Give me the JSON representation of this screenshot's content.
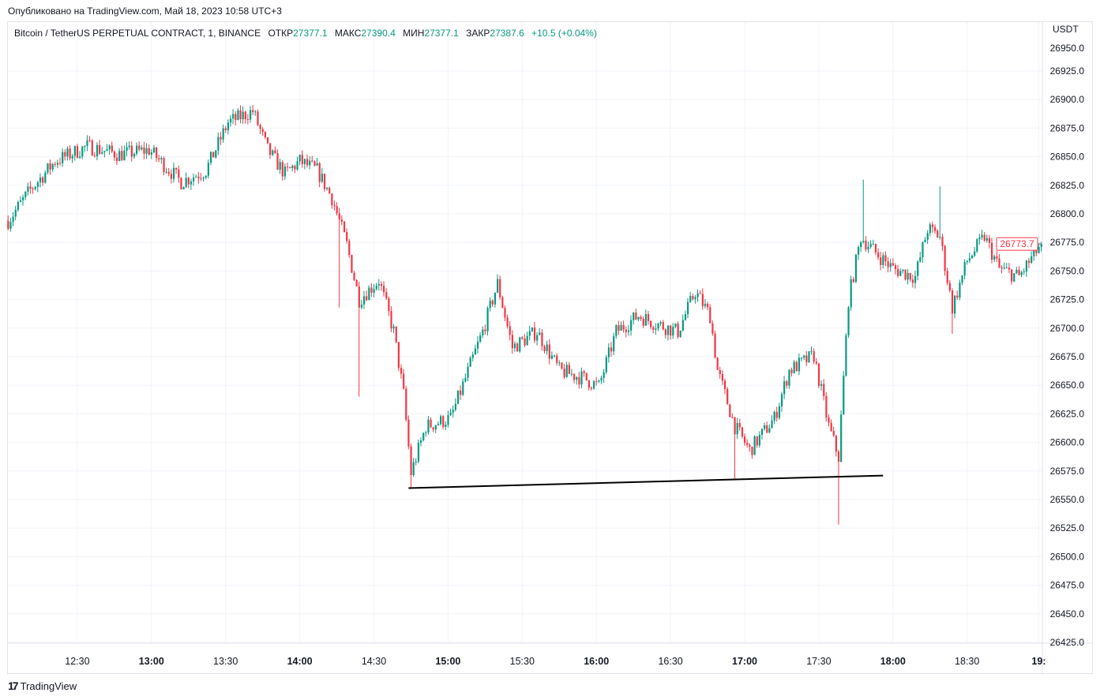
{
  "published": "Опубликовано на TradingView.com, Май 18, 2023 10:58 UTC+3",
  "legend": {
    "symbol": "Bitcoin / TetherUS PERPETUAL CONTRACT, 1, BINANCE",
    "open_label": "ОТКР",
    "open": "27377.1",
    "high_label": "МАКС",
    "high": "27390.4",
    "low_label": "МИН",
    "low": "27377.1",
    "close_label": "ЗАКР",
    "close": "27387.6",
    "change": "+10.5 (+0.04%)"
  },
  "currency": "USDT",
  "last_price": "26773.7",
  "brand": "TradingView",
  "colors": {
    "up": "#089981",
    "down": "#f23645",
    "grid": "#f0f3fa",
    "line": "#000000"
  },
  "chart_data": {
    "type": "candlestick",
    "interval_minutes": 1,
    "x_unit": "minutes after 12:00",
    "y_ticks": [
      "26950.0",
      "26925.0",
      "26900.0",
      "26875.0",
      "26850.0",
      "26825.0",
      "26800.0",
      "26775.0",
      "26750.0",
      "26725.0",
      "26700.0",
      "26675.0",
      "26650.0",
      "26625.0",
      "26600.0",
      "26575.0",
      "26550.0",
      "26525.0",
      "26500.0",
      "26475.0",
      "26450.0",
      "26425.0"
    ],
    "ylim": [
      26419,
      26966
    ],
    "xlim": [
      0,
      422
    ],
    "x_ticks": [
      {
        "m": 30,
        "label": "12:30",
        "major": false
      },
      {
        "m": 60,
        "label": "13:00",
        "major": true
      },
      {
        "m": 90,
        "label": "13:30",
        "major": false
      },
      {
        "m": 120,
        "label": "14:00",
        "major": true
      },
      {
        "m": 150,
        "label": "14:30",
        "major": false
      },
      {
        "m": 180,
        "label": "15:00",
        "major": true
      },
      {
        "m": 210,
        "label": "15:30",
        "major": false
      },
      {
        "m": 240,
        "label": "16:00",
        "major": true
      },
      {
        "m": 270,
        "label": "16:30",
        "major": false
      },
      {
        "m": 300,
        "label": "17:00",
        "major": true
      },
      {
        "m": 330,
        "label": "17:30",
        "major": false
      },
      {
        "m": 360,
        "label": "18:00",
        "major": true
      },
      {
        "m": 390,
        "label": "18:30",
        "major": false
      },
      {
        "m": 419,
        "label": "19:",
        "major": true
      }
    ],
    "path": [
      [
        2,
        26794
      ],
      [
        11,
        26821
      ],
      [
        21,
        26846
      ],
      [
        34,
        26859
      ],
      [
        47,
        26852
      ],
      [
        59,
        26856
      ],
      [
        72,
        26828
      ],
      [
        82,
        26838
      ],
      [
        91,
        26880
      ],
      [
        101,
        26890
      ],
      [
        107,
        26856
      ],
      [
        114,
        26835
      ],
      [
        120,
        26846
      ],
      [
        127,
        26838
      ],
      [
        133,
        26814
      ],
      [
        139,
        26773
      ],
      [
        144,
        26725
      ],
      [
        152,
        26742
      ],
      [
        158,
        26697
      ],
      [
        162,
        26642
      ],
      [
        165,
        26573
      ],
      [
        171,
        26614
      ],
      [
        181,
        26621
      ],
      [
        187,
        26656
      ],
      [
        194,
        26697
      ],
      [
        200,
        26739
      ],
      [
        206,
        26683
      ],
      [
        216,
        26697
      ],
      [
        225,
        26663
      ],
      [
        235,
        26656
      ],
      [
        241,
        26649
      ],
      [
        248,
        26697
      ],
      [
        257,
        26711
      ],
      [
        264,
        26704
      ],
      [
        273,
        26697
      ],
      [
        280,
        26732
      ],
      [
        286,
        26711
      ],
      [
        289,
        26663
      ],
      [
        296,
        26614
      ],
      [
        302,
        26593
      ],
      [
        312,
        26621
      ],
      [
        318,
        26663
      ],
      [
        328,
        26676
      ],
      [
        334,
        26614
      ],
      [
        338,
        26587
      ],
      [
        342,
        26725
      ],
      [
        347,
        26780
      ],
      [
        353,
        26766
      ],
      [
        360,
        26752
      ],
      [
        369,
        26745
      ],
      [
        374,
        26787
      ],
      [
        379,
        26780
      ],
      [
        384,
        26718
      ],
      [
        390,
        26759
      ],
      [
        397,
        26780
      ],
      [
        403,
        26752
      ],
      [
        411,
        26745
      ],
      [
        420,
        26773.7
      ]
    ],
    "wicks": [
      [
        136,
        26718
      ],
      [
        144,
        26640
      ],
      [
        165,
        26560
      ],
      [
        296,
        26568
      ],
      [
        338,
        26528
      ],
      [
        348,
        26830
      ],
      [
        379,
        26824
      ],
      [
        384,
        26695
      ]
    ],
    "trendline": [
      [
        164,
        26560
      ],
      [
        356,
        26571
      ]
    ]
  }
}
